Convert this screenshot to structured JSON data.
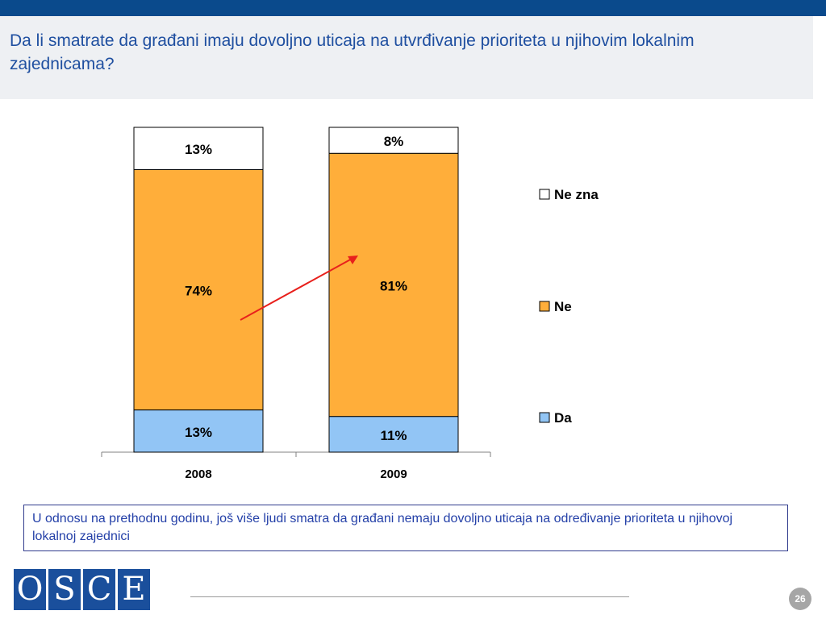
{
  "header": {
    "title": "Da li smatrate da građani imaju dovoljno uticaja na utvrđivanje prioriteta u njihovim lokalnim zajednicama?"
  },
  "chart_data": {
    "type": "bar",
    "stacked": true,
    "categories": [
      "2008",
      "2009"
    ],
    "series": [
      {
        "name": "Da",
        "values": [
          13,
          11
        ],
        "labels": [
          "13%",
          "11%"
        ],
        "color": "#92c5f5"
      },
      {
        "name": "Ne",
        "values": [
          74,
          81
        ],
        "labels": [
          "74%",
          "81%"
        ],
        "color": "#ffae3a"
      },
      {
        "name": "Ne zna",
        "values": [
          13,
          8
        ],
        "labels": [
          "13%",
          "8%"
        ],
        "color": "#ffffff"
      }
    ],
    "legend_order": [
      "Ne zna",
      "Ne",
      "Da"
    ],
    "legend_position": "right",
    "annotation": "red arrow pointing from the 2008 'Ne' segment up to the 2009 'Ne' segment",
    "annotation_color": "#e8201c",
    "ylim": [
      0,
      100
    ],
    "grid": false
  },
  "note": {
    "text": "U odnosu na prethodnu godinu, još više ljudi smatra da građani nemaju dovoljno uticaja na određivanje prioriteta u njihovoj lokalnoj zajednici"
  },
  "logo": {
    "letters": [
      "O",
      "S",
      "C",
      "E"
    ],
    "color": "#1a4f9c"
  },
  "footer": {
    "page_number": "26"
  }
}
